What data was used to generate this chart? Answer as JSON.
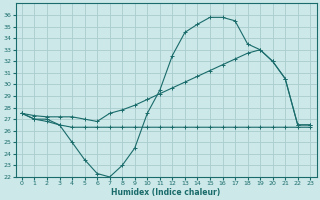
{
  "xlabel": "Humidex (Indice chaleur)",
  "background_color": "#cce8e8",
  "grid_color": "#aacccc",
  "line_color": "#1a6b6b",
  "xlim": [
    -0.5,
    23.5
  ],
  "ylim": [
    22,
    37
  ],
  "xticks": [
    0,
    1,
    2,
    3,
    4,
    5,
    6,
    7,
    8,
    9,
    10,
    11,
    12,
    13,
    14,
    15,
    16,
    17,
    18,
    19,
    20,
    21,
    22,
    23
  ],
  "yticks": [
    22,
    23,
    24,
    25,
    26,
    27,
    28,
    29,
    30,
    31,
    32,
    33,
    34,
    35,
    36
  ],
  "lineA_x": [
    0,
    1,
    2,
    3,
    4,
    5,
    6,
    7,
    8,
    9,
    10,
    11,
    12,
    13,
    14,
    15,
    16,
    17,
    18,
    19,
    20,
    21,
    22,
    23
  ],
  "lineA_y": [
    27.5,
    27.3,
    27.2,
    27.2,
    27.2,
    27.0,
    26.8,
    27.5,
    27.8,
    28.2,
    28.7,
    29.2,
    29.7,
    30.2,
    30.7,
    31.2,
    31.7,
    32.2,
    32.7,
    33.0,
    32.0,
    30.5,
    26.5,
    26.5
  ],
  "lineB_x": [
    0,
    1,
    2,
    3,
    4,
    5,
    6,
    7,
    8,
    9,
    10,
    11,
    12,
    13,
    14,
    15,
    16,
    17,
    18,
    19,
    20,
    21,
    22,
    23
  ],
  "lineB_y": [
    27.5,
    27.0,
    27.0,
    26.5,
    25.0,
    23.5,
    22.3,
    22.0,
    23.0,
    24.5,
    27.5,
    29.5,
    32.5,
    34.5,
    35.2,
    35.8,
    35.8,
    35.5,
    33.5,
    33.0,
    32.0,
    30.5,
    26.5,
    26.5
  ],
  "lineC_x": [
    0,
    1,
    2,
    3,
    4,
    5,
    6,
    7,
    8,
    9,
    10,
    11,
    12,
    13,
    14,
    15,
    16,
    17,
    18,
    19,
    20,
    21,
    22,
    23
  ],
  "lineC_y": [
    27.5,
    27.0,
    26.8,
    26.5,
    26.3,
    26.3,
    26.3,
    26.3,
    26.3,
    26.3,
    26.3,
    26.3,
    26.3,
    26.3,
    26.3,
    26.3,
    26.3,
    26.3,
    26.3,
    26.3,
    26.3,
    26.3,
    26.3,
    26.3
  ]
}
